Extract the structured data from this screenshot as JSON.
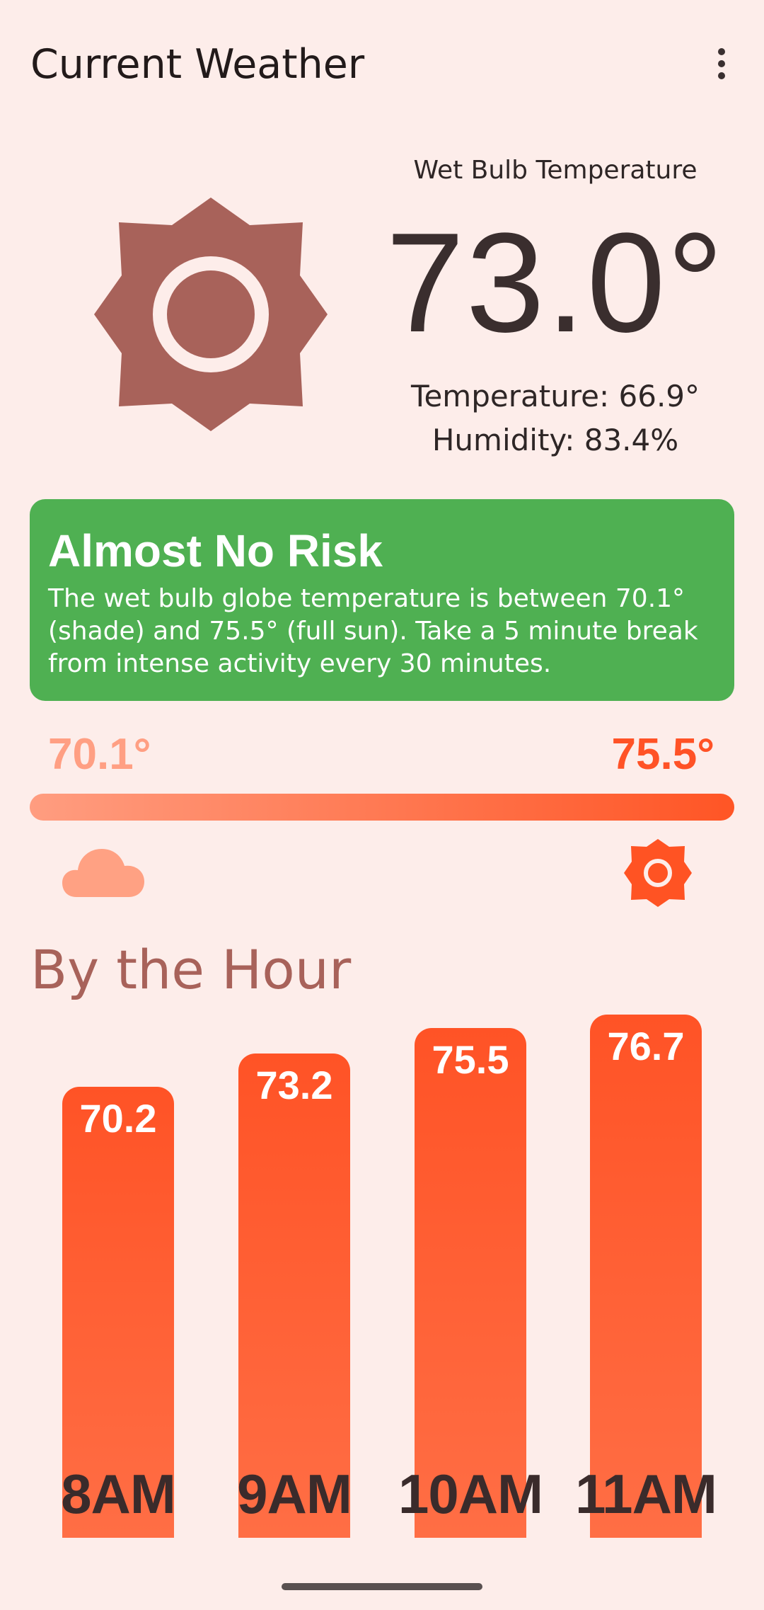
{
  "app_bar": {
    "title": "Current Weather",
    "overflow_icon": "more-vert-icon"
  },
  "current": {
    "icon": "sun-icon",
    "wet_bulb_label": "Wet Bulb Temperature",
    "wet_bulb_value": "73.0°",
    "temperature_text": "Temperature: 66.9°",
    "humidity_text": "Humidity: 83.4%"
  },
  "risk": {
    "title": "Almost No Risk",
    "description": "The wet bulb globe temperature is between 70.1° (shade) and 75.5° (full sun). Take a 5 minute break from intense activity every 30 minutes.",
    "color": "#4FB052"
  },
  "range": {
    "min_label": "70.1°",
    "max_label": "75.5°",
    "min_icon": "cloud-icon",
    "max_icon": "sun-icon",
    "min_color": "#FF9D80",
    "max_color": "#FF5525"
  },
  "hourly": {
    "title": "By the Hour"
  },
  "chart_data": {
    "type": "bar",
    "categories": [
      "8AM",
      "9AM",
      "10AM",
      "11AM"
    ],
    "values": [
      70.2,
      73.2,
      75.5,
      76.7
    ],
    "value_labels": [
      "70.2",
      "73.2",
      "75.5",
      "76.7"
    ],
    "title": "By the Hour",
    "xlabel": "",
    "ylabel": "",
    "ylim": [
      0,
      80
    ],
    "grid": false,
    "bar_color": "#FF5326"
  }
}
